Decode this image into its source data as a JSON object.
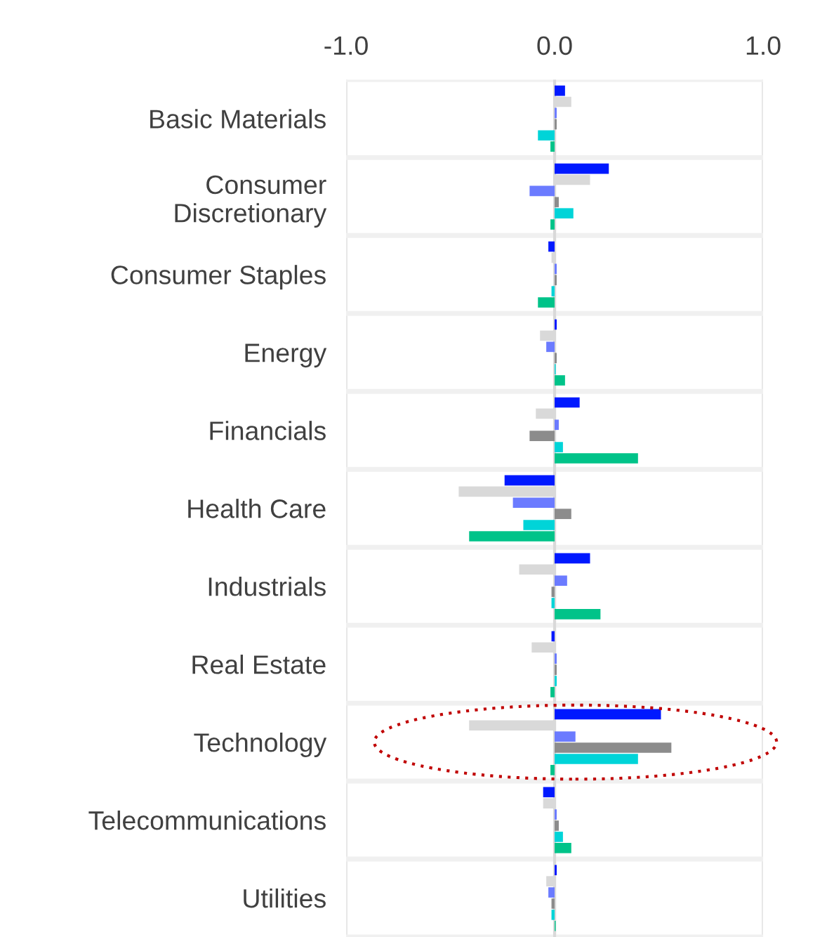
{
  "chart_data": {
    "type": "bar",
    "orientation": "horizontal",
    "categories": [
      "Basic Materials",
      "Consumer\nDiscretionary",
      "Consumer Staples",
      "Energy",
      "Financials",
      "Health Care",
      "Industrials",
      "Real Estate",
      "Technology",
      "Telecommunications",
      "Utilities"
    ],
    "series": [
      {
        "color": "#0019ff",
        "values": [
          0.05,
          0.26,
          -0.03,
          0.01,
          0.12,
          -0.24,
          0.17,
          -0.015,
          0.51,
          -0.055,
          0.01
        ]
      },
      {
        "color": "#d9d9d9",
        "values": [
          0.08,
          0.17,
          -0.015,
          -0.07,
          -0.09,
          -0.46,
          -0.17,
          -0.11,
          -0.41,
          -0.055,
          -0.04
        ]
      },
      {
        "color": "#6b7bff",
        "values": [
          0.01,
          -0.12,
          0.01,
          -0.04,
          0.02,
          -0.2,
          0.06,
          0.01,
          0.1,
          0.01,
          -0.03
        ]
      },
      {
        "color": "#8c8c8c",
        "values": [
          0.01,
          0.02,
          0.01,
          0.01,
          -0.12,
          0.08,
          -0.015,
          0.01,
          0.56,
          0.02,
          -0.015
        ]
      },
      {
        "color": "#00d4d8",
        "values": [
          -0.08,
          0.09,
          -0.015,
          0.005,
          0.04,
          -0.15,
          -0.015,
          0.01,
          0.4,
          0.04,
          -0.015
        ]
      },
      {
        "color": "#00c389",
        "values": [
          -0.02,
          -0.02,
          -0.08,
          0.05,
          0.4,
          -0.41,
          0.22,
          -0.02,
          -0.02,
          0.08,
          0.005
        ]
      }
    ],
    "xlim": [
      -1.0,
      1.0
    ],
    "xticks": [
      {
        "value": -1.0,
        "label": "-1.0"
      },
      {
        "value": 0.0,
        "label": "0.0"
      },
      {
        "value": 1.0,
        "label": "1.0"
      }
    ],
    "grid": true
  }
}
